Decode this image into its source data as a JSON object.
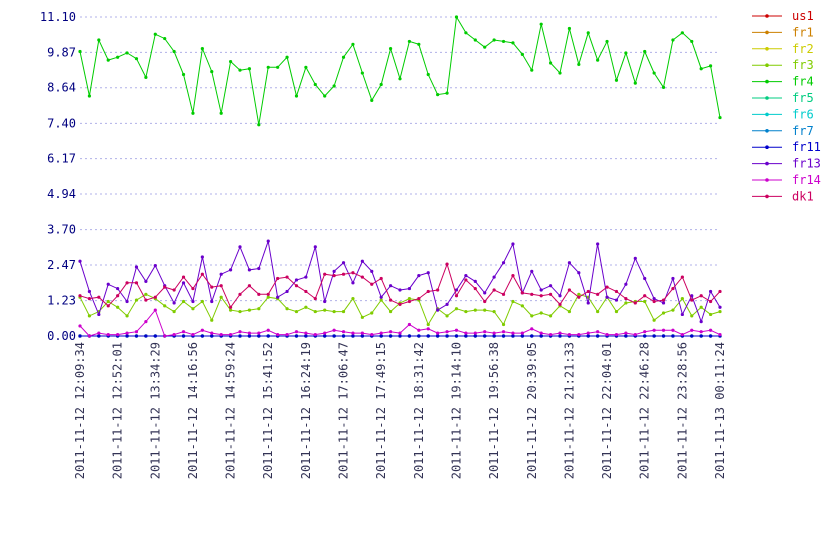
{
  "chart_data": {
    "type": "line",
    "categories": [
      "2011-11-12 12:09:34",
      null,
      null,
      null,
      "2011-11-12 12:52:01",
      null,
      null,
      null,
      "2011-11-12 13:34:29",
      null,
      null,
      null,
      "2011-11-12 14:16:56",
      null,
      null,
      null,
      "2011-11-12 14:59:24",
      null,
      null,
      null,
      "2011-11-12 15:41:52",
      null,
      null,
      null,
      "2011-11-12 16:24:19",
      null,
      null,
      null,
      "2011-11-12 17:06:47",
      null,
      null,
      null,
      "2011-11-12 17:49:15",
      null,
      null,
      null,
      "2011-11-12 18:31:42",
      null,
      null,
      null,
      "2011-11-12 19:14:10",
      null,
      null,
      null,
      "2011-11-12 19:56:38",
      null,
      null,
      null,
      "2011-11-12 20:39:05",
      null,
      null,
      null,
      "2011-11-12 21:21:33",
      null,
      null,
      null,
      "2011-11-12 22:04:01",
      null,
      null,
      null,
      "2011-11-12 22:46:28",
      null,
      null,
      null,
      "2011-11-12 23:28:56",
      null,
      null,
      null,
      "2011-11-13 00:11:24"
    ],
    "ylim": [
      0,
      11.1
    ],
    "yticks": [
      {
        "value": 0,
        "label": "0.00"
      },
      1.23,
      2.47,
      {
        "value": 3.7,
        "label": "3.70"
      },
      {
        "value": 4.94,
        "label": "4.94"
      },
      6.17,
      {
        "value": 7.4,
        "label": "7.40"
      },
      8.64,
      9.87,
      {
        "value": 11.1,
        "label": "11.10"
      }
    ],
    "grid": true,
    "legend": "right",
    "series": [
      {
        "name": "us1",
        "color": "#cc0000",
        "values": [
          0,
          0,
          0,
          0,
          0,
          0,
          0,
          0,
          0,
          0,
          0,
          0,
          0,
          0,
          0,
          0,
          0,
          0,
          0,
          0,
          0,
          0,
          0,
          0,
          0,
          0,
          0,
          0,
          0,
          0,
          0,
          0,
          0,
          0,
          0,
          0,
          0,
          0,
          0,
          0,
          0,
          0,
          0,
          0,
          0,
          0,
          0,
          0,
          0,
          0,
          0,
          0,
          0,
          0,
          0,
          0,
          0,
          0,
          0,
          0,
          0,
          0,
          0,
          0,
          0,
          0,
          0,
          0,
          0
        ]
      },
      {
        "name": "fr1",
        "color": "#cc8000",
        "values": [
          0,
          0,
          0,
          0,
          0,
          0,
          0,
          0,
          0,
          0,
          0,
          0,
          0,
          0,
          0,
          0,
          0,
          0,
          0,
          0,
          0,
          0,
          0,
          0,
          0,
          0,
          0,
          0,
          0,
          0,
          0,
          0,
          0,
          0,
          0,
          0,
          0,
          0,
          0,
          0,
          0,
          0,
          0,
          0,
          0,
          0,
          0,
          0,
          0,
          0,
          0,
          0,
          0,
          0,
          0,
          0,
          0,
          0,
          0,
          0,
          0,
          0,
          0,
          0,
          0,
          0,
          0,
          0,
          0
        ]
      },
      {
        "name": "fr2",
        "color": "#cccc00",
        "values": [
          0,
          0,
          0,
          0,
          0,
          0,
          0,
          0,
          0,
          0,
          0,
          0,
          0,
          0,
          0,
          0,
          0,
          0,
          0,
          0,
          0,
          0,
          0,
          0,
          0,
          0,
          0,
          0,
          0,
          0,
          0,
          0,
          0,
          0,
          0,
          0,
          0,
          0,
          0,
          0,
          0,
          0,
          0,
          0,
          0,
          0,
          0,
          0,
          0,
          0,
          0,
          0,
          0,
          0,
          0,
          0,
          0,
          0,
          0,
          0,
          0,
          0,
          0,
          0,
          0,
          0,
          0,
          0,
          0
        ]
      },
      {
        "name": "fr3",
        "color": "#80cc00",
        "values": [
          1.35,
          0.7,
          0.85,
          1.2,
          1.0,
          0.7,
          1.25,
          1.45,
          1.3,
          1.05,
          0.85,
          1.2,
          0.95,
          1.2,
          0.55,
          1.35,
          0.9,
          0.85,
          0.9,
          0.95,
          1.35,
          1.3,
          0.95,
          0.85,
          1.0,
          0.85,
          0.9,
          0.85,
          0.85,
          1.3,
          0.65,
          0.8,
          1.25,
          0.85,
          1.15,
          1.3,
          1.25,
          0.4,
          0.95,
          0.7,
          0.95,
          0.85,
          0.9,
          0.9,
          0.85,
          0.4,
          1.2,
          1.05,
          0.7,
          0.8,
          0.7,
          1.05,
          0.85,
          1.45,
          1.35,
          0.85,
          1.35,
          0.85,
          1.15,
          1.2,
          1.2,
          0.55,
          0.8,
          0.9,
          1.3,
          0.7,
          1.0,
          0.75,
          0.85
        ]
      },
      {
        "name": "fr4",
        "color": "#00cc00",
        "values": [
          9.9,
          8.35,
          10.3,
          9.6,
          9.7,
          9.85,
          9.65,
          9.0,
          10.5,
          10.35,
          9.9,
          9.1,
          7.75,
          10.0,
          9.2,
          7.75,
          9.55,
          9.25,
          9.3,
          7.35,
          9.35,
          9.35,
          9.7,
          8.35,
          9.35,
          8.75,
          8.35,
          8.7,
          9.7,
          10.15,
          9.15,
          8.2,
          8.75,
          10.0,
          8.95,
          10.25,
          10.15,
          9.1,
          8.4,
          8.45,
          11.1,
          10.55,
          10.3,
          10.05,
          10.3,
          10.25,
          10.2,
          9.8,
          9.25,
          10.85,
          9.5,
          9.15,
          10.7,
          9.45,
          10.55,
          9.6,
          10.25,
          8.9,
          9.85,
          8.8,
          9.9,
          9.15,
          8.65,
          10.3,
          10.55,
          10.25,
          9.3,
          9.4,
          7.6
        ]
      },
      {
        "name": "fr5",
        "color": "#00cc80",
        "values": [
          0,
          0,
          0,
          0,
          0,
          0,
          0,
          0,
          0,
          0,
          0,
          0,
          0,
          0,
          0,
          0,
          0,
          0,
          0,
          0,
          0,
          0,
          0,
          0,
          0,
          0,
          0,
          0,
          0,
          0,
          0,
          0,
          0,
          0,
          0,
          0,
          0,
          0,
          0,
          0,
          0,
          0,
          0,
          0,
          0,
          0,
          0,
          0,
          0,
          0,
          0,
          0,
          0,
          0,
          0,
          0,
          0,
          0,
          0,
          0,
          0,
          0,
          0,
          0,
          0,
          0,
          0,
          0,
          0
        ]
      },
      {
        "name": "fr6",
        "color": "#00cccc",
        "values": [
          0,
          0,
          0,
          0,
          0,
          0,
          0,
          0,
          0,
          0,
          0,
          0,
          0,
          0,
          0,
          0,
          0,
          0,
          0,
          0,
          0,
          0,
          0,
          0,
          0,
          0,
          0,
          0,
          0,
          0,
          0,
          0,
          0,
          0,
          0,
          0,
          0,
          0,
          0,
          0,
          0,
          0,
          0,
          0,
          0,
          0,
          0,
          0,
          0,
          0,
          0,
          0,
          0,
          0,
          0,
          0,
          0,
          0,
          0,
          0,
          0,
          0,
          0,
          0,
          0,
          0,
          0,
          0,
          0
        ]
      },
      {
        "name": "fr7",
        "color": "#0080cc",
        "values": [
          0,
          0,
          0,
          0,
          0,
          0,
          0,
          0,
          0,
          0,
          0,
          0,
          0,
          0,
          0,
          0,
          0,
          0,
          0,
          0,
          0,
          0,
          0,
          0,
          0,
          0,
          0,
          0,
          0,
          0,
          0,
          0,
          0,
          0,
          0,
          0,
          0,
          0,
          0,
          0,
          0,
          0,
          0,
          0,
          0,
          0,
          0,
          0,
          0,
          0,
          0,
          0,
          0,
          0,
          0,
          0,
          0,
          0,
          0,
          0,
          0,
          0,
          0,
          0,
          0,
          0,
          0,
          0,
          0
        ]
      },
      {
        "name": "fr11",
        "color": "#0000cc",
        "values": [
          0,
          0,
          0,
          0,
          0,
          0,
          0,
          0,
          0,
          0,
          0,
          0,
          0,
          0,
          0,
          0,
          0,
          0,
          0,
          0,
          0,
          0,
          0,
          0,
          0,
          0,
          0,
          0,
          0,
          0,
          0,
          0,
          0,
          0,
          0,
          0,
          0,
          0,
          0,
          0,
          0,
          0,
          0,
          0,
          0,
          0,
          0,
          0,
          0,
          0,
          0,
          0,
          0,
          0,
          0,
          0,
          0,
          0,
          0,
          0,
          0,
          0,
          0,
          0,
          0,
          0,
          0,
          0,
          0
        ]
      },
      {
        "name": "fr13",
        "color": "#6a00cc",
        "values": [
          2.6,
          1.55,
          0.75,
          1.8,
          1.65,
          1.2,
          2.4,
          1.9,
          2.45,
          1.75,
          1.15,
          1.85,
          1.2,
          2.75,
          1.2,
          2.15,
          2.3,
          3.1,
          2.3,
          2.35,
          3.3,
          1.35,
          1.55,
          1.95,
          2.05,
          3.1,
          1.2,
          2.25,
          2.55,
          1.85,
          2.6,
          2.25,
          1.35,
          1.75,
          1.6,
          1.65,
          2.1,
          2.2,
          0.9,
          1.1,
          1.6,
          2.1,
          1.9,
          1.5,
          2.05,
          2.55,
          3.2,
          1.5,
          2.25,
          1.6,
          1.75,
          1.4,
          2.55,
          2.2,
          1.15,
          3.2,
          1.35,
          1.25,
          1.8,
          2.7,
          2.0,
          1.3,
          1.15,
          2.0,
          0.75,
          1.4,
          0.5,
          1.55,
          1.0
        ]
      },
      {
        "name": "fr14",
        "color": "#cc00cc",
        "values": [
          0.35,
          0,
          0.1,
          0.05,
          0.05,
          0.1,
          0.15,
          0.5,
          0.9,
          0,
          0.05,
          0.15,
          0.05,
          0.2,
          0.1,
          0.05,
          0.05,
          0.15,
          0.1,
          0.1,
          0.2,
          0.05,
          0.05,
          0.15,
          0.1,
          0.05,
          0.1,
          0.2,
          0.15,
          0.1,
          0.1,
          0.05,
          0.1,
          0.15,
          0.1,
          0.4,
          0.2,
          0.25,
          0.1,
          0.15,
          0.2,
          0.1,
          0.1,
          0.15,
          0.1,
          0.15,
          0.1,
          0.1,
          0.25,
          0.1,
          0.05,
          0.1,
          0.05,
          0.05,
          0.1,
          0.15,
          0.05,
          0.05,
          0.1,
          0.05,
          0.15,
          0.2,
          0.2,
          0.2,
          0.05,
          0.2,
          0.15,
          0.2,
          0.05
        ]
      },
      {
        "name": "dk1",
        "color": "#cc0060",
        "values": [
          1.4,
          1.3,
          1.35,
          1.05,
          1.4,
          1.85,
          1.85,
          1.25,
          1.35,
          1.7,
          1.6,
          2.05,
          1.65,
          2.15,
          1.7,
          1.75,
          1.0,
          1.45,
          1.75,
          1.45,
          1.45,
          2.0,
          2.05,
          1.75,
          1.55,
          1.3,
          2.15,
          2.1,
          2.15,
          2.2,
          2.05,
          1.8,
          2.0,
          1.25,
          1.1,
          1.2,
          1.3,
          1.55,
          1.6,
          2.5,
          1.4,
          1.95,
          1.65,
          1.2,
          1.6,
          1.45,
          2.1,
          1.5,
          1.45,
          1.4,
          1.45,
          1.1,
          1.6,
          1.35,
          1.55,
          1.45,
          1.7,
          1.55,
          1.3,
          1.15,
          1.4,
          1.2,
          1.25,
          1.65,
          2.05,
          1.25,
          1.4,
          1.2,
          1.55
        ]
      }
    ]
  }
}
